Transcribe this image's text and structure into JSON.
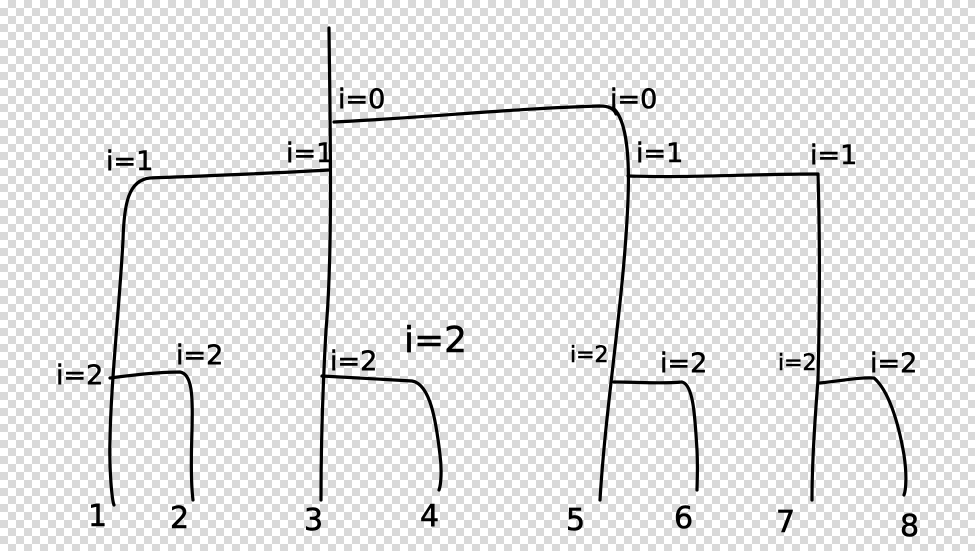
{
  "diagram": {
    "description": "Hand-drawn binary tree / butterfly network with level labels",
    "level_labels": {
      "root_left": "i=0",
      "root_right": "i=0",
      "mid_left_a": "i=1",
      "mid_left_b": "i=1",
      "mid_right_a": "i=1",
      "mid_right_b": "i=1",
      "low_1": "i=2",
      "low_2": "i=2",
      "low_3": "i=2",
      "low_4": "i=2",
      "low_5": "i=2",
      "low_6": "i=2",
      "low_7": "i=2",
      "low_8": "i=2"
    },
    "leaves": [
      "1",
      "2",
      "3",
      "4",
      "5",
      "6",
      "7",
      "8"
    ]
  }
}
